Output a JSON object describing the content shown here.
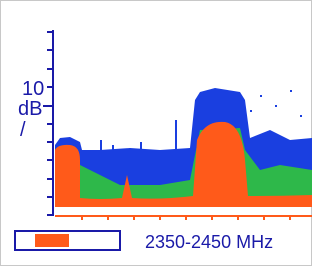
{
  "axis": {
    "scale_value": "10",
    "unit": "dB",
    "per": "/"
  },
  "frequency_range": "2350-2450 MHz"
}
